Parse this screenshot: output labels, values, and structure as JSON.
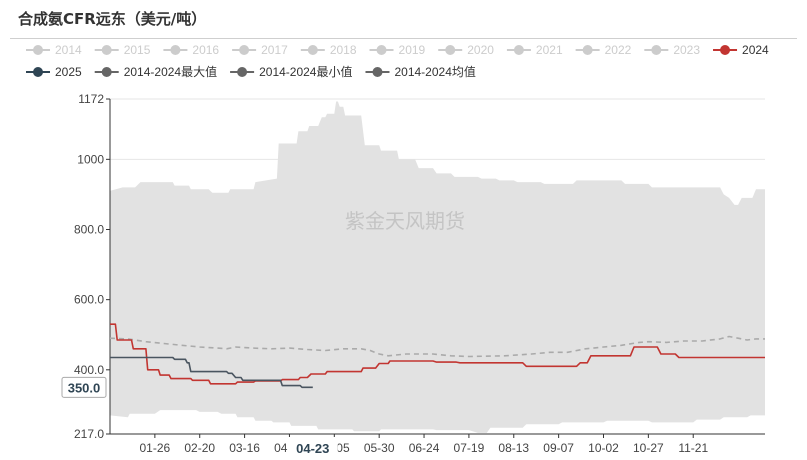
{
  "title": "合成氨CFR远东（美元/吨）",
  "watermark": "紫金天风期货",
  "legend": [
    {
      "name": "2014",
      "color": "#cccccc",
      "active": false
    },
    {
      "name": "2015",
      "color": "#cccccc",
      "active": false
    },
    {
      "name": "2016",
      "color": "#cccccc",
      "active": false
    },
    {
      "name": "2017",
      "color": "#cccccc",
      "active": false
    },
    {
      "name": "2018",
      "color": "#cccccc",
      "active": false
    },
    {
      "name": "2019",
      "color": "#cccccc",
      "active": false
    },
    {
      "name": "2020",
      "color": "#cccccc",
      "active": false
    },
    {
      "name": "2021",
      "color": "#cccccc",
      "active": false
    },
    {
      "name": "2022",
      "color": "#cccccc",
      "active": false
    },
    {
      "name": "2023",
      "color": "#cccccc",
      "active": false
    },
    {
      "name": "2024",
      "color": "#c23531",
      "active": true
    },
    {
      "name": "2025",
      "color": "#2f4554",
      "active": true
    },
    {
      "name": "2014-2024最大值",
      "color": "#666666",
      "active": true
    },
    {
      "name": "2014-2024最小值",
      "color": "#666666",
      "active": true
    },
    {
      "name": "2014-2024均值",
      "color": "#666666",
      "active": true
    }
  ],
  "chart_data": {
    "type": "line",
    "title": "合成氨CFR远东（美元/吨）",
    "ylim": [
      217.0,
      1172
    ],
    "y_ticks": [
      "1172",
      "1000",
      "800.0",
      "600.0",
      "400.0",
      "217.0"
    ],
    "x_ticks": [
      "01-26",
      "02-20",
      "03-16",
      "04-10",
      "05-05",
      "05-30",
      "06-24",
      "07-19",
      "08-13",
      "09-07",
      "10-02",
      "10-27",
      "11-21"
    ],
    "x_tick_days": [
      25,
      50,
      75,
      100,
      125,
      150,
      175,
      200,
      225,
      250,
      275,
      300,
      325
    ],
    "x_range_days": [
      0,
      365
    ],
    "tooltip": {
      "y_label": "350.0",
      "x_label": "04-23"
    },
    "band": {
      "max": [
        [
          0,
          910
        ],
        [
          7,
          920
        ],
        [
          14,
          920
        ],
        [
          17,
          935
        ],
        [
          35,
          935
        ],
        [
          36,
          925
        ],
        [
          44,
          925
        ],
        [
          45,
          915
        ],
        [
          55,
          915
        ],
        [
          57,
          905
        ],
        [
          66,
          905
        ],
        [
          67,
          915
        ],
        [
          80,
          915
        ],
        [
          81,
          935
        ],
        [
          93,
          945
        ],
        [
          94,
          1045
        ],
        [
          104,
          1045
        ],
        [
          105,
          1080
        ],
        [
          110,
          1080
        ],
        [
          111,
          1095
        ],
        [
          116,
          1095
        ],
        [
          118,
          1120
        ],
        [
          120,
          1120
        ],
        [
          121,
          1130
        ],
        [
          125,
          1130
        ],
        [
          126,
          1165
        ],
        [
          127,
          1165
        ],
        [
          128,
          1150
        ],
        [
          130,
          1150
        ],
        [
          131,
          1125
        ],
        [
          140,
          1125
        ],
        [
          142,
          1040
        ],
        [
          150,
          1040
        ],
        [
          151,
          1025
        ],
        [
          160,
          1025
        ],
        [
          161,
          1000
        ],
        [
          170,
          1000
        ],
        [
          172,
          975
        ],
        [
          180,
          975
        ],
        [
          182,
          960
        ],
        [
          190,
          960
        ],
        [
          192,
          950
        ],
        [
          205,
          950
        ],
        [
          207,
          945
        ],
        [
          215,
          945
        ],
        [
          217,
          940
        ],
        [
          225,
          940
        ],
        [
          227,
          935
        ],
        [
          240,
          935
        ],
        [
          242,
          930
        ],
        [
          258,
          930
        ],
        [
          260,
          940
        ],
        [
          285,
          940
        ],
        [
          287,
          930
        ],
        [
          300,
          930
        ],
        [
          302,
          920
        ],
        [
          340,
          920
        ],
        [
          342,
          900
        ],
        [
          345,
          890
        ],
        [
          348,
          870
        ],
        [
          350,
          870
        ],
        [
          352,
          890
        ],
        [
          358,
          890
        ],
        [
          360,
          915
        ],
        [
          365,
          915
        ]
      ],
      "min": [
        [
          0,
          270
        ],
        [
          10,
          265
        ],
        [
          11,
          275
        ],
        [
          25,
          275
        ],
        [
          28,
          285
        ],
        [
          48,
          285
        ],
        [
          50,
          280
        ],
        [
          60,
          280
        ],
        [
          62,
          275
        ],
        [
          70,
          275
        ],
        [
          71,
          265
        ],
        [
          80,
          265
        ],
        [
          81,
          255
        ],
        [
          90,
          255
        ],
        [
          91,
          250
        ],
        [
          100,
          250
        ],
        [
          101,
          240
        ],
        [
          115,
          240
        ],
        [
          116,
          230
        ],
        [
          135,
          230
        ],
        [
          136,
          225
        ],
        [
          150,
          225
        ],
        [
          151,
          230
        ],
        [
          180,
          230
        ],
        [
          182,
          228
        ],
        [
          200,
          228
        ],
        [
          205,
          220
        ],
        [
          210,
          220
        ],
        [
          212,
          235
        ],
        [
          230,
          235
        ],
        [
          232,
          245
        ],
        [
          250,
          245
        ],
        [
          252,
          250
        ],
        [
          275,
          250
        ],
        [
          277,
          255
        ],
        [
          300,
          255
        ],
        [
          302,
          250
        ],
        [
          325,
          250
        ],
        [
          327,
          258
        ],
        [
          340,
          258
        ],
        [
          342,
          265
        ],
        [
          355,
          265
        ],
        [
          357,
          270
        ],
        [
          365,
          270
        ]
      ]
    },
    "series": [
      {
        "name": "2014-2024均值",
        "color": "#aaaaaa",
        "dashed": true,
        "points": [
          [
            0,
            490
          ],
          [
            10,
            488
          ],
          [
            20,
            480
          ],
          [
            30,
            475
          ],
          [
            40,
            470
          ],
          [
            50,
            465
          ],
          [
            60,
            462
          ],
          [
            65,
            460
          ],
          [
            70,
            465
          ],
          [
            80,
            462
          ],
          [
            90,
            460
          ],
          [
            100,
            462
          ],
          [
            110,
            458
          ],
          [
            120,
            455
          ],
          [
            130,
            460
          ],
          [
            140,
            460
          ],
          [
            145,
            455
          ],
          [
            150,
            445
          ],
          [
            155,
            440
          ],
          [
            165,
            445
          ],
          [
            180,
            445
          ],
          [
            190,
            440
          ],
          [
            200,
            438
          ],
          [
            220,
            440
          ],
          [
            235,
            445
          ],
          [
            245,
            450
          ],
          [
            255,
            450
          ],
          [
            265,
            460
          ],
          [
            275,
            465
          ],
          [
            285,
            470
          ],
          [
            295,
            478
          ],
          [
            300,
            480
          ],
          [
            310,
            478
          ],
          [
            320,
            482
          ],
          [
            330,
            482
          ],
          [
            340,
            488
          ],
          [
            345,
            495
          ],
          [
            350,
            490
          ],
          [
            355,
            485
          ],
          [
            360,
            488
          ],
          [
            365,
            488
          ]
        ]
      },
      {
        "name": "2024",
        "color": "#c23531",
        "dashed": false,
        "points": [
          [
            0,
            530
          ],
          [
            3,
            530
          ],
          [
            4,
            485
          ],
          [
            12,
            485
          ],
          [
            13,
            460
          ],
          [
            20,
            460
          ],
          [
            21,
            400
          ],
          [
            27,
            400
          ],
          [
            28,
            385
          ],
          [
            33,
            385
          ],
          [
            34,
            375
          ],
          [
            45,
            375
          ],
          [
            46,
            370
          ],
          [
            55,
            370
          ],
          [
            56,
            360
          ],
          [
            70,
            360
          ],
          [
            71,
            365
          ],
          [
            80,
            365
          ],
          [
            81,
            368
          ],
          [
            95,
            368
          ],
          [
            96,
            372
          ],
          [
            105,
            372
          ],
          [
            106,
            378
          ],
          [
            110,
            378
          ],
          [
            112,
            388
          ],
          [
            120,
            388
          ],
          [
            121,
            395
          ],
          [
            140,
            395
          ],
          [
            141,
            405
          ],
          [
            148,
            405
          ],
          [
            150,
            418
          ],
          [
            155,
            418
          ],
          [
            156,
            425
          ],
          [
            180,
            425
          ],
          [
            182,
            422
          ],
          [
            193,
            422
          ],
          [
            195,
            420
          ],
          [
            230,
            420
          ],
          [
            232,
            410
          ],
          [
            260,
            410
          ],
          [
            262,
            420
          ],
          [
            266,
            420
          ],
          [
            268,
            440
          ],
          [
            290,
            440
          ],
          [
            292,
            465
          ],
          [
            305,
            465
          ],
          [
            307,
            445
          ],
          [
            315,
            445
          ],
          [
            317,
            435
          ],
          [
            365,
            435
          ]
        ]
      },
      {
        "name": "2025",
        "color": "#4a5560",
        "dashed": false,
        "points": [
          [
            0,
            435
          ],
          [
            35,
            435
          ],
          [
            36,
            430
          ],
          [
            42,
            430
          ],
          [
            43,
            420
          ],
          [
            44,
            420
          ],
          [
            45,
            395
          ],
          [
            65,
            395
          ],
          [
            66,
            390
          ],
          [
            68,
            390
          ],
          [
            70,
            378
          ],
          [
            73,
            378
          ],
          [
            74,
            370
          ],
          [
            95,
            370
          ],
          [
            96,
            355
          ],
          [
            106,
            355
          ],
          [
            107,
            350
          ],
          [
            113,
            350
          ]
        ]
      }
    ]
  }
}
